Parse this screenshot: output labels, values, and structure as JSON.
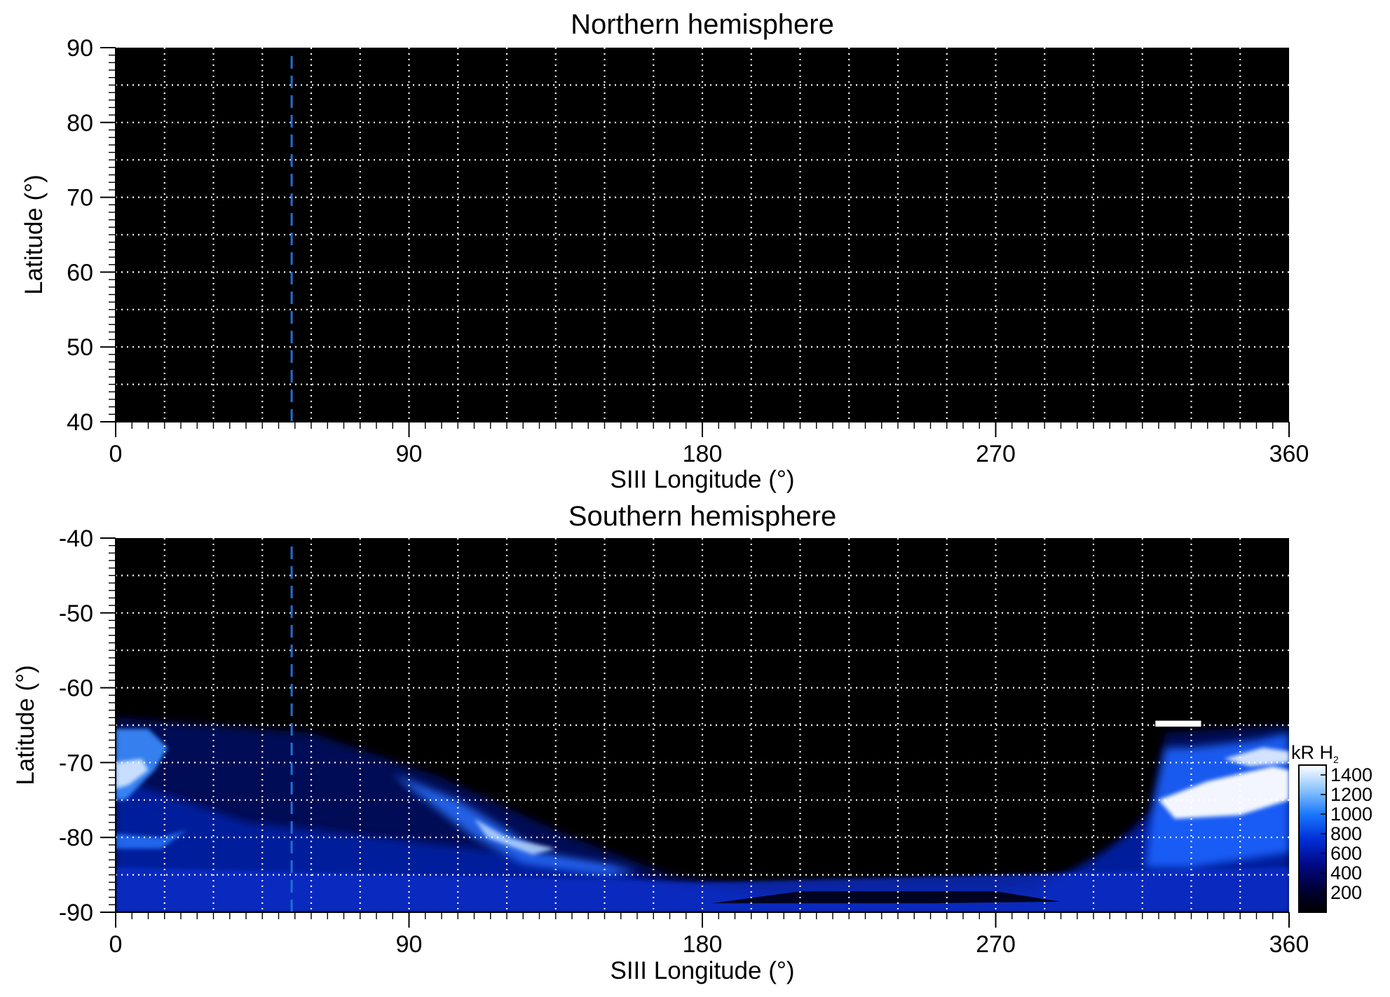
{
  "chart_data": [
    {
      "type": "heatmap",
      "title": "Northern hemisphere",
      "xlabel": "SIII Longitude (°)",
      "ylabel": "Latitude (°)",
      "xlim": [
        0,
        360
      ],
      "ylim": [
        40,
        90
      ],
      "x_ticks": [
        0,
        90,
        180,
        270,
        360
      ],
      "y_ticks": [
        40,
        50,
        60,
        70,
        80,
        90
      ],
      "grid": true,
      "grid_x_step": 15,
      "grid_y_step": 5,
      "grid_style": "dotted white",
      "marker_longitude": 54,
      "marker_style": "dashed",
      "marker_color": "#1f6fd6",
      "background_color": "#000000",
      "emission": "none"
    },
    {
      "type": "heatmap",
      "title": "Southern hemisphere",
      "xlabel": "SIII Longitude (°)",
      "ylabel": "Latitude (°)",
      "xlim": [
        0,
        360
      ],
      "ylim": [
        -90,
        -40
      ],
      "x_ticks": [
        0,
        90,
        180,
        270,
        360
      ],
      "y_ticks": [
        -40,
        -50,
        -60,
        -70,
        -80,
        -90
      ],
      "grid": true,
      "grid_x_step": 15,
      "grid_y_step": 5,
      "grid_style": "dotted white",
      "marker_longitude": 54,
      "marker_style": "dashed",
      "marker_color": "#1f6fd6",
      "background_color": "#000000",
      "emission": "auroral oval between about -65° and -90° latitude; bright (≥1400 kR) near 320–360° longitude, -70° to -77° latitude; fainter arc from 80° to 160° longitude",
      "colorbar": {
        "label": "kR H",
        "label_subscript": "2",
        "ticks": [
          200,
          400,
          600,
          800,
          1000,
          1200,
          1400
        ],
        "range": [
          0,
          1500
        ],
        "colors": [
          "#000000",
          "#00003a",
          "#000a8a",
          "#0030d8",
          "#1a78ff",
          "#8cc4ff",
          "#ffffff"
        ],
        "position": "right"
      }
    }
  ]
}
